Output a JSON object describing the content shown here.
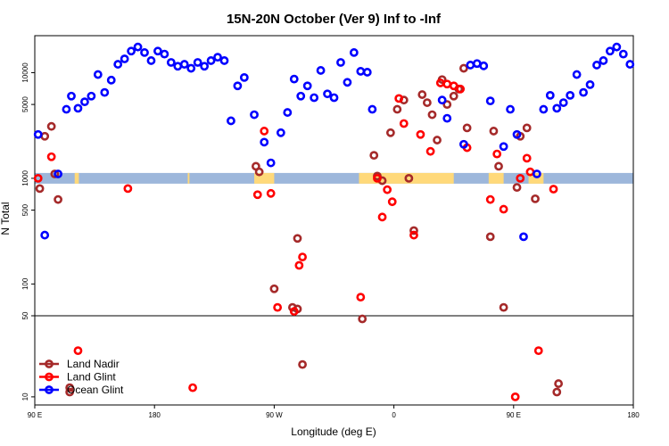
{
  "chart_data": {
    "type": "scatter",
    "title": "15N-20N October (Ver 9)   Inf to -Inf",
    "xlabel": "Longitude (deg E)",
    "ylabel": "N Total",
    "xlim": [
      0,
      360
    ],
    "x_ticks": [
      {
        "value": 0,
        "label": "90 E"
      },
      {
        "value": 72,
        "label": "180"
      },
      {
        "value": 144,
        "label": "90 W"
      },
      {
        "value": 216,
        "label": "0"
      },
      {
        "value": 288,
        "label": "90 E"
      },
      {
        "value": 360,
        "label": "180"
      }
    ],
    "y_scale": "log-split",
    "y_break": 50,
    "y_upper_ticks": [
      {
        "value": 10000,
        "label": "10000"
      },
      {
        "value": 5000,
        "label": "5000"
      },
      {
        "value": 1000,
        "label": "1000"
      },
      {
        "value": 500,
        "label": "500"
      },
      {
        "value": 100,
        "label": "100"
      },
      {
        "value": 50,
        "label": "50"
      }
    ],
    "y_lower_ticks": [
      {
        "value": 50,
        "label": "50"
      },
      {
        "value": 10,
        "label": "10"
      }
    ],
    "land_band_value": 1000,
    "colors": {
      "land_nadir": "#a52a2a",
      "land_glint": "#ff0000",
      "ocean_glint": "#0000ff",
      "ocean_band": "#9db7db",
      "land_band": "#ffd97a"
    },
    "land_segments": [
      [
        24,
        26.5
      ],
      [
        92,
        93
      ],
      [
        132,
        144
      ],
      [
        195,
        252
      ],
      [
        273,
        282
      ],
      [
        297,
        306
      ]
    ],
    "legend": [
      {
        "label": "Land Nadir",
        "color": "#a52a2a"
      },
      {
        "label": "Land Glint",
        "color": "#ff0000"
      },
      {
        "label": "Ocean Glint",
        "color": "#0000ff"
      }
    ],
    "series": [
      {
        "name": "Land Nadir",
        "color": "#a52a2a",
        "points": [
          [
            3,
            800
          ],
          [
            6,
            2500
          ],
          [
            10,
            3100
          ],
          [
            12,
            1100
          ],
          [
            14,
            630
          ],
          [
            133,
            1300
          ],
          [
            135,
            1150
          ],
          [
            144,
            90
          ],
          [
            155,
            60
          ],
          [
            158,
            270
          ],
          [
            161,
            19
          ],
          [
            158,
            58
          ],
          [
            197,
            47
          ],
          [
            204,
            1650
          ],
          [
            206,
            1050
          ],
          [
            209,
            950
          ],
          [
            214,
            2700
          ],
          [
            218,
            4500
          ],
          [
            222,
            5500
          ],
          [
            225,
            1000
          ],
          [
            228,
            320
          ],
          [
            233,
            6200
          ],
          [
            236,
            5200
          ],
          [
            239,
            4000
          ],
          [
            242,
            2300
          ],
          [
            245,
            8600
          ],
          [
            248,
            5000
          ],
          [
            252,
            6000
          ],
          [
            255,
            7000
          ],
          [
            258,
            11000
          ],
          [
            260,
            3000
          ],
          [
            274,
            280
          ],
          [
            276,
            2800
          ],
          [
            279,
            1300
          ],
          [
            282,
            60
          ],
          [
            290,
            820
          ],
          [
            292,
            2500
          ],
          [
            296,
            3000
          ],
          [
            301,
            640
          ],
          [
            314,
            11
          ],
          [
            315,
            13
          ],
          [
            21,
            11
          ],
          [
            21,
            12
          ]
        ]
      },
      {
        "name": "Land Glint",
        "color": "#ff0000",
        "points": [
          [
            2,
            1000
          ],
          [
            10,
            1600
          ],
          [
            26,
            25
          ],
          [
            56,
            800
          ],
          [
            95,
            12
          ],
          [
            134,
            700
          ],
          [
            138,
            2800
          ],
          [
            142,
            720
          ],
          [
            146,
            60
          ],
          [
            156,
            55
          ],
          [
            159,
            150
          ],
          [
            161,
            180
          ],
          [
            196,
            75
          ],
          [
            206,
            1000
          ],
          [
            209,
            430
          ],
          [
            212,
            780
          ],
          [
            215,
            600
          ],
          [
            219,
            5700
          ],
          [
            222,
            3300
          ],
          [
            228,
            290
          ],
          [
            232,
            2600
          ],
          [
            238,
            1800
          ],
          [
            244,
            8000
          ],
          [
            248,
            7800
          ],
          [
            252,
            7500
          ],
          [
            256,
            7000
          ],
          [
            260,
            1950
          ],
          [
            274,
            630
          ],
          [
            278,
            1700
          ],
          [
            282,
            510
          ],
          [
            289,
            10
          ],
          [
            292,
            1000
          ],
          [
            296,
            1550
          ],
          [
            298,
            1150
          ],
          [
            303,
            25
          ],
          [
            312,
            790
          ]
        ]
      },
      {
        "name": "Ocean Glint",
        "color": "#0000ff",
        "points": [
          [
            2,
            2600
          ],
          [
            6,
            290
          ],
          [
            14,
            1100
          ],
          [
            19,
            4500
          ],
          [
            22,
            6000
          ],
          [
            26,
            4600
          ],
          [
            30,
            5300
          ],
          [
            34,
            6000
          ],
          [
            38,
            9600
          ],
          [
            42,
            6500
          ],
          [
            46,
            8500
          ],
          [
            50,
            12000
          ],
          [
            54,
            13500
          ],
          [
            58,
            16000
          ],
          [
            62,
            17500
          ],
          [
            66,
            15500
          ],
          [
            70,
            13000
          ],
          [
            74,
            16000
          ],
          [
            78,
            15000
          ],
          [
            82,
            12500
          ],
          [
            86,
            11500
          ],
          [
            90,
            12000
          ],
          [
            94,
            11000
          ],
          [
            98,
            12500
          ],
          [
            102,
            11500
          ],
          [
            106,
            13000
          ],
          [
            110,
            14000
          ],
          [
            114,
            13000
          ],
          [
            118,
            3500
          ],
          [
            122,
            7500
          ],
          [
            126,
            9000
          ],
          [
            132,
            4000
          ],
          [
            138,
            2200
          ],
          [
            142,
            1400
          ],
          [
            148,
            2700
          ],
          [
            152,
            4200
          ],
          [
            156,
            8700
          ],
          [
            160,
            6000
          ],
          [
            164,
            7500
          ],
          [
            168,
            5800
          ],
          [
            172,
            10500
          ],
          [
            176,
            6300
          ],
          [
            180,
            5800
          ],
          [
            184,
            12500
          ],
          [
            188,
            8100
          ],
          [
            192,
            15500
          ],
          [
            196,
            10300
          ],
          [
            200,
            10100
          ],
          [
            203,
            4500
          ],
          [
            258,
            2100
          ],
          [
            262,
            11800
          ],
          [
            266,
            12200
          ],
          [
            270,
            11600
          ],
          [
            274,
            5400
          ],
          [
            282,
            2000
          ],
          [
            286,
            4500
          ],
          [
            290,
            2600
          ],
          [
            294,
            280
          ],
          [
            302,
            1100
          ],
          [
            306,
            4500
          ],
          [
            310,
            6100
          ],
          [
            314,
            4600
          ],
          [
            318,
            5200
          ],
          [
            322,
            6100
          ],
          [
            326,
            9600
          ],
          [
            330,
            6500
          ],
          [
            334,
            7700
          ],
          [
            338,
            11800
          ],
          [
            342,
            13000
          ],
          [
            346,
            16000
          ],
          [
            350,
            17500
          ],
          [
            354,
            15000
          ],
          [
            358,
            12000
          ],
          [
            245,
            5500
          ],
          [
            248,
            3700
          ]
        ]
      }
    ]
  }
}
